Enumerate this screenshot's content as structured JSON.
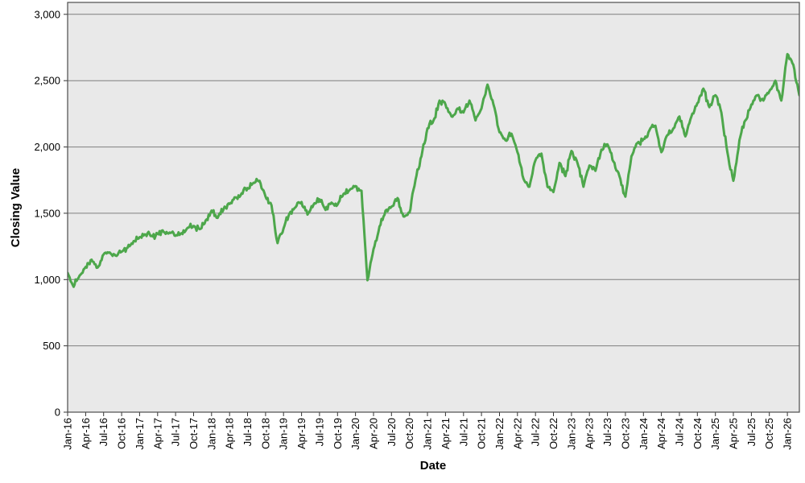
{
  "chart_data": {
    "type": "line",
    "title": "",
    "xlabel": "Date",
    "ylabel": "Closing Value",
    "x_unit": "months since Jan-2016",
    "xlim_months": [
      0,
      122
    ],
    "ylim": [
      0,
      3090
    ],
    "grid": "horizontal",
    "legend_position": "none",
    "y_ticks": [
      0,
      500,
      1000,
      1500,
      2000,
      2500,
      3000
    ],
    "y_tick_labels": [
      "0",
      "500",
      "1,000",
      "1,500",
      "2,000",
      "2,500",
      "3,000"
    ],
    "x_tick_step_months": 3,
    "x_tick_labels": [
      "Jan-16",
      "Apr-16",
      "Jul-16",
      "Oct-16",
      "Jan-17",
      "Apr-17",
      "Jul-17",
      "Oct-17",
      "Jan-18",
      "Apr-18",
      "Jul-18",
      "Oct-18",
      "Jan-19",
      "Apr-19",
      "Jul-19",
      "Oct-19",
      "Jan-20",
      "Apr-20",
      "Jul-20",
      "Oct-20",
      "Jan-21",
      "Apr-21",
      "Jul-21",
      "Oct-21",
      "Jan-22",
      "Apr-22",
      "Jul-22",
      "Oct-22",
      "Jan-23",
      "Apr-23",
      "Jul-23",
      "Oct-23",
      "Jan-24",
      "Apr-24",
      "Jul-24",
      "Oct-24",
      "Jan-25",
      "Apr-25",
      "Jul-25",
      "Oct-25",
      "Jan-26"
    ],
    "series": [
      {
        "name": "Closing Value",
        "color": "#4da74b",
        "first_month": "Jan-16",
        "last_month": "Mar-26",
        "monthly_values": [
          1050,
          945,
          1030,
          1095,
          1150,
          1090,
          1190,
          1205,
          1180,
          1210,
          1240,
          1290,
          1320,
          1340,
          1330,
          1345,
          1360,
          1355,
          1330,
          1350,
          1390,
          1405,
          1380,
          1445,
          1520,
          1465,
          1530,
          1570,
          1620,
          1650,
          1690,
          1730,
          1745,
          1625,
          1560,
          1275,
          1385,
          1500,
          1545,
          1585,
          1490,
          1565,
          1605,
          1525,
          1580,
          1565,
          1645,
          1675,
          1705,
          1670,
          995,
          1230,
          1400,
          1520,
          1550,
          1615,
          1475,
          1505,
          1750,
          1930,
          2140,
          2200,
          2350,
          2320,
          2230,
          2290,
          2260,
          2350,
          2200,
          2290,
          2470,
          2320,
          2110,
          2050,
          2100,
          1960,
          1760,
          1700,
          1900,
          1950,
          1700,
          1660,
          1880,
          1780,
          1970,
          1880,
          1700,
          1860,
          1820,
          1980,
          2020,
          1890,
          1780,
          1625,
          1930,
          2030,
          2060,
          2125,
          2160,
          1960,
          2090,
          2140,
          2230,
          2080,
          2230,
          2330,
          2440,
          2300,
          2390,
          2260,
          1960,
          1745,
          2050,
          2200,
          2320,
          2390,
          2350,
          2420,
          2500,
          2350,
          2700,
          2620,
          2390
        ]
      }
    ],
    "colors": {
      "line": "#4da74b",
      "plot_background": "#e9e9e9",
      "gridline": "#7f7f7f",
      "plot_border": "#4c4c4c",
      "tick_mark": "#333333",
      "tick_text": "#000000",
      "page_background": "#ffffff"
    }
  }
}
